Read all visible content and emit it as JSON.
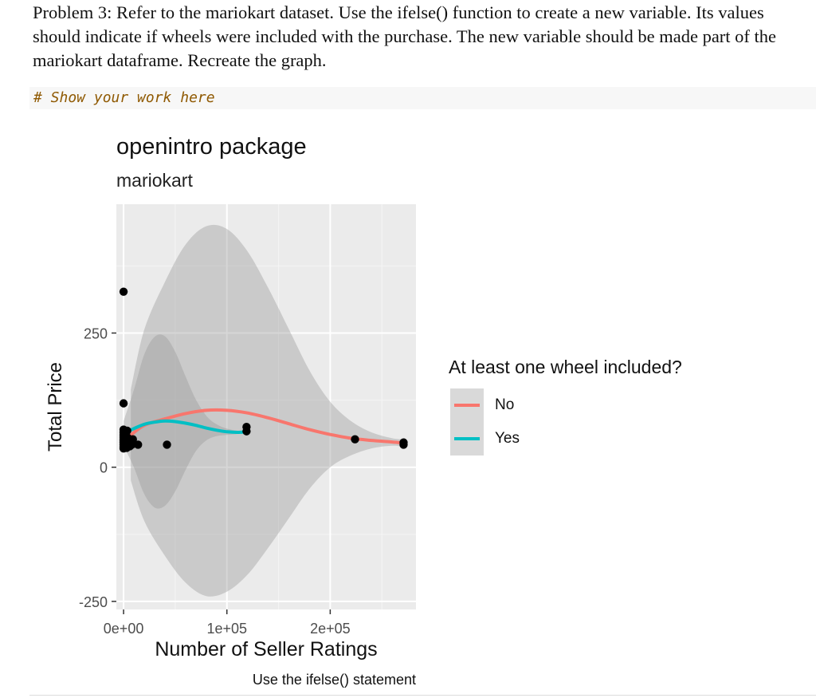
{
  "problem_text": "Problem 3: Refer to the mariokart dataset. Use the ifelse() function to create a new variable. Its values should indicate if wheels were included with the purchase. The new variable should be made part of the mariokart dataframe. Recreate the graph.",
  "code_comment": "# Show your work here",
  "chart_data": {
    "type": "scatter",
    "title": "openintro package",
    "subtitle": "mariokart",
    "xlabel": "Number of Seller Ratings",
    "ylabel": "Total Price",
    "caption": "Use the ifelse() statement",
    "xlim": [
      -7000,
      283000
    ],
    "ylim": [
      -265,
      490
    ],
    "x_ticks": [
      0,
      100000,
      200000
    ],
    "x_tick_labels": [
      "0e+00",
      "1e+05",
      "2e+05"
    ],
    "y_ticks": [
      -250,
      0,
      250
    ],
    "y_tick_labels": [
      "-250",
      "0",
      "250"
    ],
    "grid": true,
    "legend": {
      "title": "At least one wheel included?",
      "position": "right",
      "entries": [
        {
          "label": "No",
          "color": "#F8766D"
        },
        {
          "label": "Yes",
          "color": "#00BFC4"
        }
      ]
    },
    "points": [
      [
        0,
        327
      ],
      [
        0,
        119
      ],
      [
        0,
        70
      ],
      [
        0,
        65
      ],
      [
        0,
        60
      ],
      [
        0,
        56
      ],
      [
        0,
        52
      ],
      [
        0,
        49
      ],
      [
        0,
        46
      ],
      [
        0,
        42
      ],
      [
        0,
        38
      ],
      [
        0,
        35
      ],
      [
        1500,
        50
      ],
      [
        1500,
        40
      ],
      [
        2000,
        62
      ],
      [
        2500,
        44
      ],
      [
        3000,
        36
      ],
      [
        3500,
        68
      ],
      [
        4000,
        55
      ],
      [
        5000,
        45
      ],
      [
        6000,
        39
      ],
      [
        7000,
        47
      ],
      [
        8000,
        42
      ],
      [
        9000,
        52
      ],
      [
        14000,
        42
      ],
      [
        42000,
        42
      ],
      [
        119000,
        75
      ],
      [
        119000,
        67
      ],
      [
        224000,
        52
      ],
      [
        271000,
        46
      ],
      [
        271000,
        42
      ]
    ],
    "series": [
      {
        "name": "No",
        "color": "#F8766D",
        "x": [
          7000,
          20000,
          40000,
          60000,
          80000,
          100000,
          120000,
          140000,
          160000,
          180000,
          200000,
          220000,
          240000,
          260000,
          271000
        ],
        "y": [
          60,
          78,
          90,
          100,
          106,
          106,
          101,
          92,
          81,
          70,
          61,
          54,
          50,
          47,
          45
        ],
        "band_lower": [
          -25,
          -100,
          -165,
          -215,
          -240,
          -232,
          -200,
          -150,
          -95,
          -40,
          0,
          22,
          35,
          40,
          38
        ],
        "band_upper": [
          145,
          256,
          345,
          415,
          449,
          444,
          402,
          334,
          257,
          180,
          122,
          86,
          65,
          54,
          52
        ]
      },
      {
        "name": "Yes",
        "color": "#00BFC4",
        "x": [
          0,
          10000,
          20000,
          30000,
          40000,
          50000,
          60000,
          70000,
          80000,
          90000,
          100000,
          110000,
          119000
        ],
        "y": [
          63,
          72,
          80,
          84,
          86,
          85,
          82,
          78,
          73,
          69,
          66,
          65,
          66
        ],
        "band_lower": [
          40,
          0,
          -50,
          -75,
          -72,
          -45,
          -5,
          30,
          50,
          58,
          60,
          62,
          64
        ],
        "band_upper": [
          86,
          144,
          210,
          243,
          244,
          215,
          169,
          126,
          96,
          80,
          72,
          68,
          68
        ]
      }
    ]
  }
}
